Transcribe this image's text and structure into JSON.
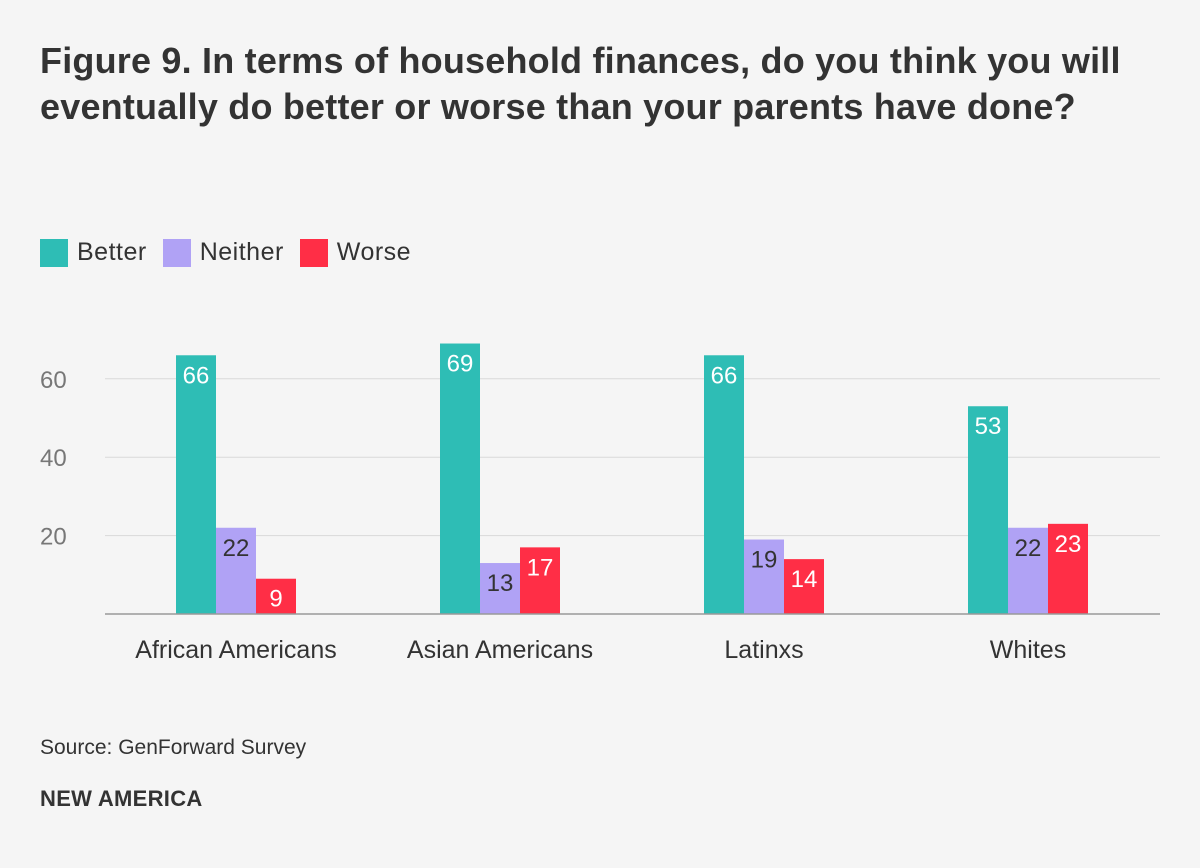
{
  "chart_data": {
    "type": "bar",
    "title": "Figure 9. In terms of household finances, do you think you will eventually do better or worse than your parents have done?",
    "categories": [
      "African Americans",
      "Asian Americans",
      "Latinxs",
      "Whites"
    ],
    "series": [
      {
        "name": "Better",
        "color": "#2ebdb5",
        "values": [
          66,
          69,
          66,
          53
        ]
      },
      {
        "name": "Neither",
        "color": "#b0a2f5",
        "values": [
          22,
          13,
          19,
          22
        ]
      },
      {
        "name": "Worse",
        "color": "#ff2e46",
        "values": [
          9,
          17,
          14,
          23
        ]
      }
    ],
    "yticks": [
      "20",
      "40",
      "60"
    ],
    "ylim": [
      0,
      75
    ],
    "grid": true,
    "legend_position": "top-left",
    "xlabel": "",
    "ylabel": ""
  },
  "source_label": "Source: ",
  "source_value": "GenForward Survey",
  "brand": "NEW AMERICA"
}
